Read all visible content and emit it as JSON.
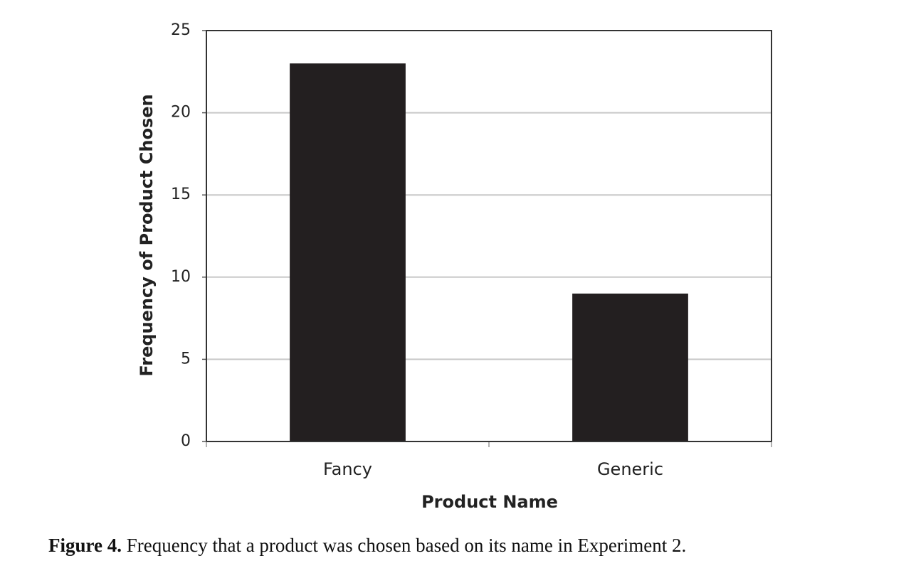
{
  "chart_data": {
    "type": "bar",
    "categories": [
      "Fancy",
      "Generic"
    ],
    "values": [
      23,
      9
    ],
    "color": "#231f20",
    "xlabel": "Product Name",
    "ylabel": "Frequency of Product Chosen",
    "ylim": [
      0,
      25
    ],
    "yticks": [
      0,
      5,
      10,
      15,
      20,
      25
    ],
    "grid": true,
    "caption_label": "Figure 4.",
    "caption": "Frequency that a product was chosen based on its name in Experiment 2."
  }
}
